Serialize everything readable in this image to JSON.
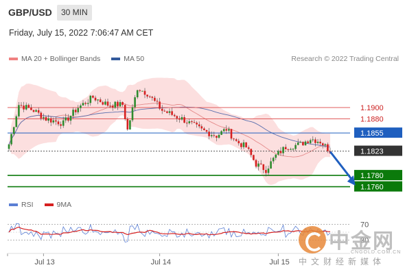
{
  "header": {
    "symbol": "GBP/USD",
    "timeframe": "30 MIN",
    "date": "Friday, July 15, 2022 7:06:47 AM CET"
  },
  "legend": {
    "ma20_label": "MA 20 + Bollinger Bands",
    "ma20_color": "#f08080",
    "ma50_label": "MA 50",
    "ma50_color": "#335a9c",
    "credit": "Research © 2022 Trading Central"
  },
  "rsi_legend": {
    "rsi_label": "RSI",
    "rsi_color": "#5b7fd4",
    "ma_label": "9MA",
    "ma_color": "#d62020"
  },
  "watermark": {
    "title": "中金网",
    "url": "CNGOLD.COM.CN",
    "subtitle": "中文财经新媒体"
  },
  "chart_data": [
    {
      "type": "candlestick",
      "series": "GBP/USD 30 MIN",
      "ylim": [
        1.1745,
        1.1975
      ],
      "x_ticks": [
        "Jul 13",
        "Jul 14",
        "Jul 15"
      ],
      "x_tick_bars": [
        14,
        61,
        109
      ],
      "n_bars": 131,
      "levels": [
        {
          "label": "1.1900",
          "value": 1.19,
          "kind": "resistance",
          "color": "#e05c5c",
          "bg": "#ffffff",
          "fg": "#cc1f1f"
        },
        {
          "label": "1.1880",
          "value": 1.188,
          "kind": "resistance",
          "color": "#e05c5c",
          "bg": "#ffffff",
          "fg": "#cc1f1f"
        },
        {
          "label": "1.1855",
          "value": 1.1855,
          "kind": "pivot",
          "color": "#1f5fbf",
          "bg": "#1f5fbf",
          "fg": "#ffffff"
        },
        {
          "label": "1.1823",
          "value": 1.1823,
          "kind": "last",
          "color": "#555555",
          "bg": "#333333",
          "fg": "#ffffff"
        },
        {
          "label": "1.1780",
          "value": 1.178,
          "kind": "support",
          "color": "#0b7a0b",
          "bg": "#0b7a0b",
          "fg": "#ffffff"
        },
        {
          "label": "1.1760",
          "value": 1.176,
          "kind": "support",
          "color": "#0b7a0b",
          "bg": "#0b7a0b",
          "fg": "#ffffff"
        }
      ],
      "forecast_arrow": {
        "from_bar": 130,
        "from_value": 1.1822,
        "to_bar": 138,
        "to_value": 1.1762,
        "color": "#1f5fbf"
      },
      "up_color": "#2e8b2e",
      "down_color": "#d62020",
      "band_color": "#fcd9d9"
    },
    {
      "type": "line",
      "series": "RSI",
      "ylim": [
        0,
        100
      ],
      "y_ticks": [
        "70",
        "30"
      ],
      "levels": [
        70,
        30
      ]
    }
  ]
}
